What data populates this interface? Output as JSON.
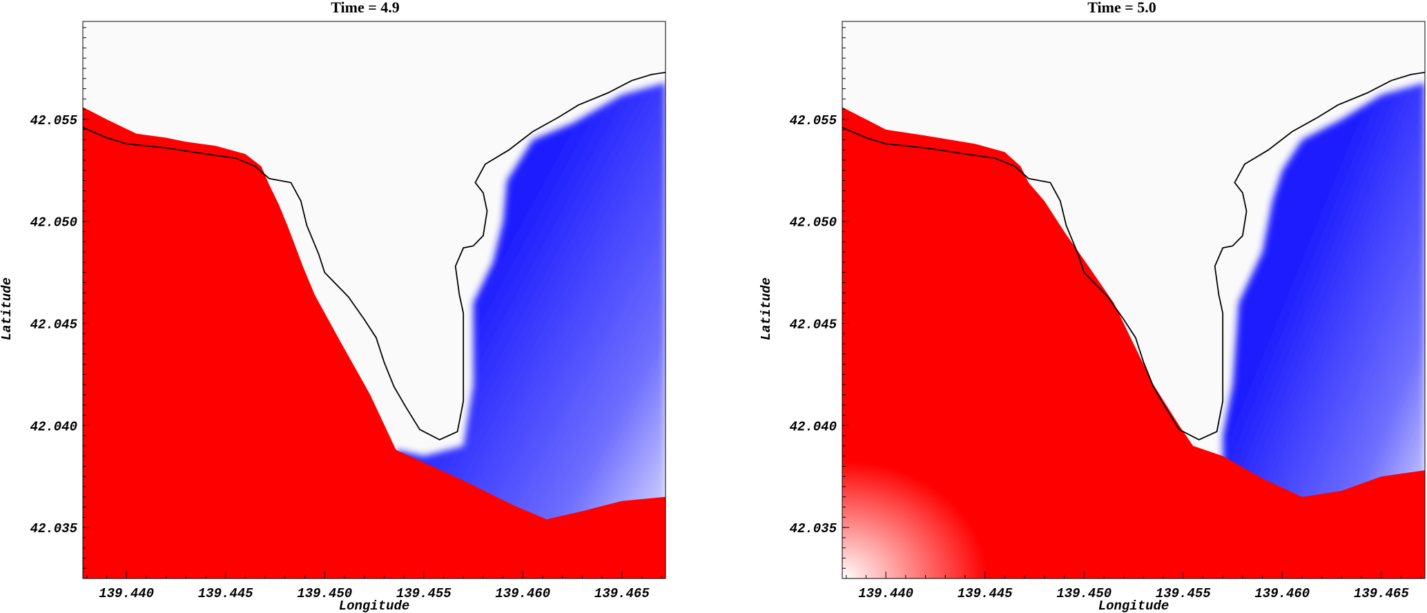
{
  "chart_data": [
    {
      "type": "heatmap",
      "title": "Time = 4.9",
      "xlabel": "Longitude",
      "ylabel": "Latitude",
      "xlim": [
        139.4378,
        139.4672
      ],
      "ylim": [
        42.0325,
        42.0598
      ],
      "xticks": [
        "139.440",
        "139.445",
        "139.450",
        "139.455",
        "139.460",
        "139.465"
      ],
      "yticks": [
        "42.035",
        "42.040",
        "42.045",
        "42.050",
        "42.055"
      ],
      "colors": {
        "high": "#ff0000",
        "low": "#1a1aff",
        "dry": "#fafafa",
        "coast": "#000000"
      },
      "coastline": [
        [
          139.4378,
          42.0546
        ],
        [
          139.439,
          42.0541
        ],
        [
          139.44,
          42.0538
        ],
        [
          139.442,
          42.0536
        ],
        [
          139.444,
          42.0533
        ],
        [
          139.4455,
          42.0531
        ],
        [
          139.4465,
          42.0527
        ],
        [
          139.4472,
          42.0521
        ],
        [
          139.4483,
          42.0519
        ],
        [
          139.4488,
          42.051
        ],
        [
          139.4491,
          42.0498
        ],
        [
          139.4497,
          42.0484
        ],
        [
          139.45,
          42.0475
        ],
        [
          139.4512,
          42.0463
        ],
        [
          139.452,
          42.0452
        ],
        [
          139.4526,
          42.0443
        ],
        [
          139.453,
          42.0431
        ],
        [
          139.4535,
          42.0419
        ],
        [
          139.4541,
          42.0409
        ],
        [
          139.4548,
          42.0398
        ],
        [
          139.4558,
          42.0393
        ],
        [
          139.4567,
          42.0397
        ],
        [
          139.457,
          42.0412
        ],
        [
          139.457,
          42.0425
        ],
        [
          139.457,
          42.044
        ],
        [
          139.457,
          42.0455
        ],
        [
          139.4568,
          42.0464
        ],
        [
          139.4566,
          42.0478
        ],
        [
          139.457,
          42.0487
        ],
        [
          139.4575,
          42.0488
        ],
        [
          139.458,
          42.0493
        ],
        [
          139.4582,
          42.0505
        ],
        [
          139.458,
          42.0514
        ],
        [
          139.4576,
          42.0519
        ],
        [
          139.4581,
          42.0528
        ],
        [
          139.4593,
          42.0535
        ],
        [
          139.4605,
          42.0544
        ],
        [
          139.4618,
          42.0551
        ],
        [
          139.4628,
          42.0557
        ],
        [
          139.4643,
          42.0563
        ],
        [
          139.4655,
          42.0569
        ],
        [
          139.4665,
          42.0572
        ],
        [
          139.4672,
          42.0573
        ]
      ],
      "red_boundary": [
        [
          139.4378,
          42.0556
        ],
        [
          139.439,
          42.055
        ],
        [
          139.4405,
          42.0543
        ],
        [
          139.442,
          42.0541
        ],
        [
          139.443,
          42.0539
        ],
        [
          139.4445,
          42.0537
        ],
        [
          139.446,
          42.0533
        ],
        [
          139.4468,
          42.0527
        ],
        [
          139.4472,
          42.0518
        ],
        [
          139.4477,
          42.0508
        ],
        [
          139.4482,
          42.0496
        ],
        [
          139.4489,
          42.0478
        ],
        [
          139.4495,
          42.0464
        ],
        [
          139.4508,
          42.0441
        ],
        [
          139.4523,
          42.0415
        ],
        [
          139.4536,
          42.0388
        ],
        [
          139.457,
          42.0373
        ],
        [
          139.4595,
          42.0361
        ],
        [
          139.4612,
          42.0354
        ],
        [
          139.463,
          42.0358
        ],
        [
          139.465,
          42.0363
        ],
        [
          139.4672,
          42.0365
        ]
      ],
      "blue_boundary": [
        [
          139.4536,
          42.0388
        ],
        [
          139.455,
          42.0385
        ],
        [
          139.457,
          42.039
        ],
        [
          139.4575,
          42.042
        ],
        [
          139.4575,
          42.046
        ],
        [
          139.4585,
          42.048
        ],
        [
          139.459,
          42.05
        ],
        [
          139.4592,
          42.052
        ],
        [
          139.4605,
          42.054
        ],
        [
          139.4625,
          42.0548
        ],
        [
          139.465,
          42.0562
        ],
        [
          139.4672,
          42.0568
        ]
      ]
    },
    {
      "type": "heatmap",
      "title": "Time = 5.0",
      "xlabel": "Longitude",
      "ylabel": "Latitude",
      "xlim": [
        139.4378,
        139.4672
      ],
      "ylim": [
        42.0325,
        42.0598
      ],
      "xticks": [
        "139.440",
        "139.445",
        "139.450",
        "139.455",
        "139.460",
        "139.465"
      ],
      "yticks": [
        "42.035",
        "42.040",
        "42.045",
        "42.050",
        "42.055"
      ],
      "colors": {
        "high": "#ff0000",
        "low": "#1a1aff",
        "dry": "#fafafa",
        "coast": "#000000"
      },
      "coastline": [
        [
          139.4378,
          42.0546
        ],
        [
          139.439,
          42.0541
        ],
        [
          139.44,
          42.0538
        ],
        [
          139.442,
          42.0536
        ],
        [
          139.444,
          42.0533
        ],
        [
          139.4455,
          42.0531
        ],
        [
          139.4465,
          42.0527
        ],
        [
          139.4472,
          42.0521
        ],
        [
          139.4483,
          42.0519
        ],
        [
          139.4488,
          42.051
        ],
        [
          139.4491,
          42.0498
        ],
        [
          139.4497,
          42.0484
        ],
        [
          139.45,
          42.0475
        ],
        [
          139.4512,
          42.0463
        ],
        [
          139.452,
          42.0452
        ],
        [
          139.4526,
          42.0443
        ],
        [
          139.453,
          42.0431
        ],
        [
          139.4535,
          42.0419
        ],
        [
          139.4541,
          42.0409
        ],
        [
          139.4548,
          42.0398
        ],
        [
          139.4558,
          42.0393
        ],
        [
          139.4567,
          42.0397
        ],
        [
          139.457,
          42.0412
        ],
        [
          139.457,
          42.0425
        ],
        [
          139.457,
          42.044
        ],
        [
          139.457,
          42.0455
        ],
        [
          139.4568,
          42.0464
        ],
        [
          139.4566,
          42.0478
        ],
        [
          139.457,
          42.0487
        ],
        [
          139.4575,
          42.0488
        ],
        [
          139.458,
          42.0493
        ],
        [
          139.4582,
          42.0505
        ],
        [
          139.458,
          42.0514
        ],
        [
          139.4576,
          42.0519
        ],
        [
          139.4581,
          42.0528
        ],
        [
          139.4593,
          42.0535
        ],
        [
          139.4605,
          42.0544
        ],
        [
          139.4618,
          42.0551
        ],
        [
          139.4628,
          42.0557
        ],
        [
          139.4643,
          42.0563
        ],
        [
          139.4655,
          42.0569
        ],
        [
          139.4665,
          42.0572
        ],
        [
          139.4672,
          42.0573
        ]
      ],
      "red_boundary": [
        [
          139.4378,
          42.0556
        ],
        [
          139.44,
          42.0545
        ],
        [
          139.442,
          42.0542
        ],
        [
          139.4445,
          42.0538
        ],
        [
          139.446,
          42.0534
        ],
        [
          139.4468,
          42.0527
        ],
        [
          139.4472,
          42.0519
        ],
        [
          139.448,
          42.051
        ],
        [
          139.449,
          42.0495
        ],
        [
          139.4503,
          42.0477
        ],
        [
          139.4515,
          42.046
        ],
        [
          139.4525,
          42.044
        ],
        [
          139.4535,
          42.042
        ],
        [
          139.4548,
          42.04
        ],
        [
          139.4555,
          42.039
        ],
        [
          139.457,
          42.0385
        ],
        [
          139.459,
          42.0374
        ],
        [
          139.461,
          42.0365
        ],
        [
          139.463,
          42.0368
        ],
        [
          139.465,
          42.0375
        ],
        [
          139.4672,
          42.0378
        ]
      ],
      "blue_boundary": [
        [
          139.457,
          42.0395
        ],
        [
          139.4575,
          42.042
        ],
        [
          139.4578,
          42.046
        ],
        [
          139.459,
          42.0485
        ],
        [
          139.4595,
          42.051
        ],
        [
          139.46,
          42.0525
        ],
        [
          139.461,
          42.054
        ],
        [
          139.463,
          42.055
        ],
        [
          139.465,
          42.0562
        ],
        [
          139.4672,
          42.0568
        ]
      ]
    }
  ]
}
